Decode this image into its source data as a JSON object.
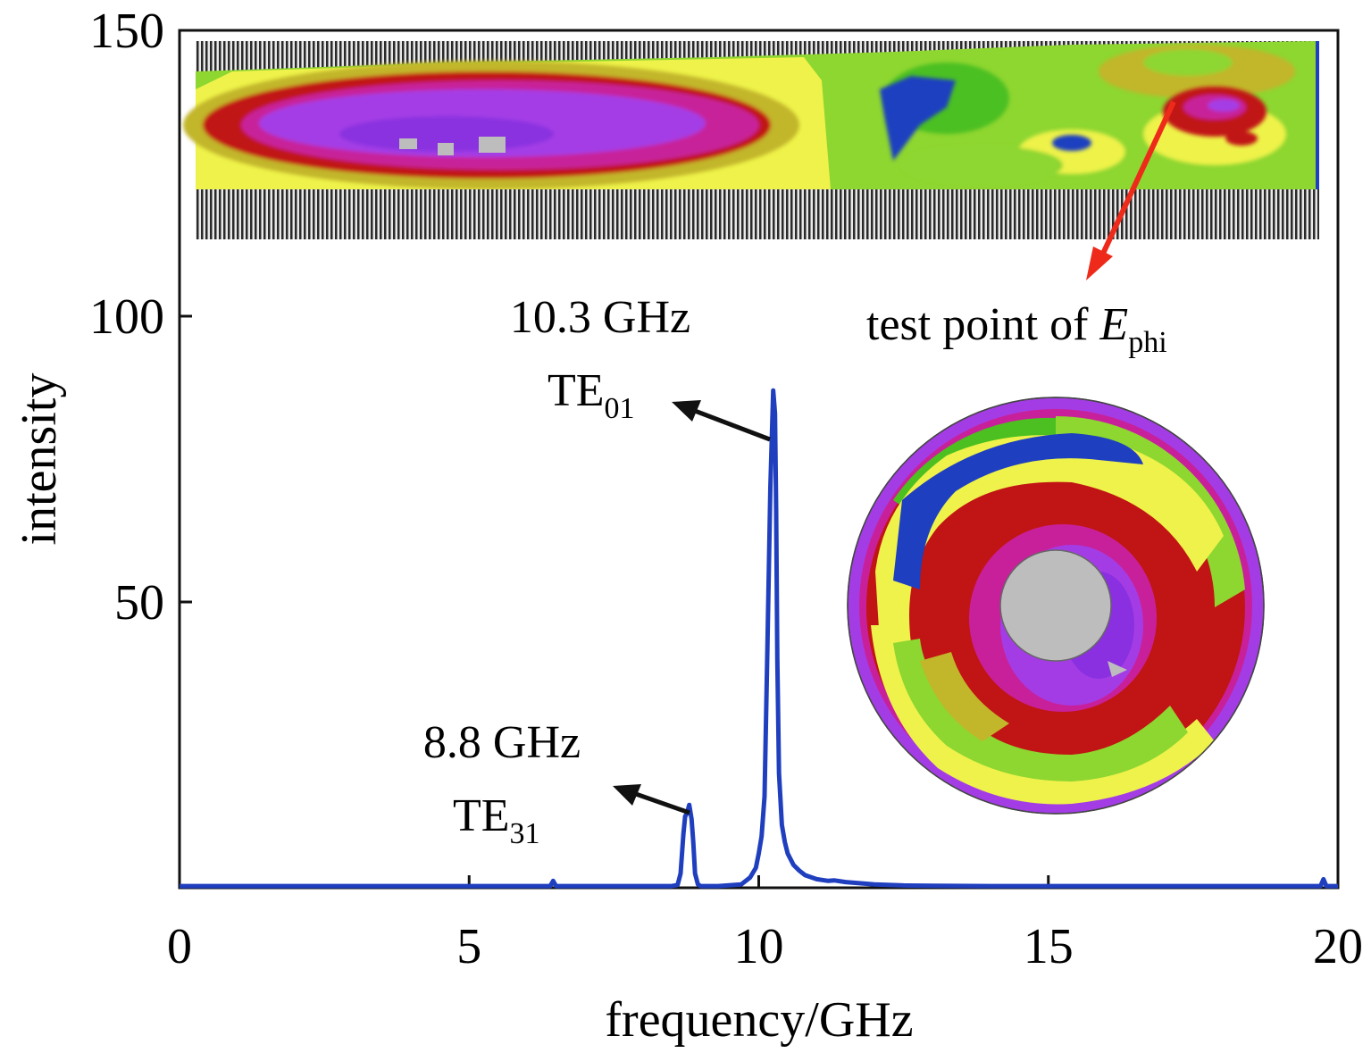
{
  "chart_data": {
    "type": "line",
    "xlabel": "frequency/GHz",
    "ylabel": "intensity",
    "xlim": [
      0,
      20
    ],
    "ylim": [
      0,
      150
    ],
    "x_ticks": [
      "0",
      "5",
      "10",
      "15",
      "20"
    ],
    "y_ticks": [
      "50",
      "100",
      "150"
    ],
    "grid": false,
    "series": [
      {
        "color": "#1f3fbf",
        "x": [
          0,
          2,
          4,
          6,
          6.4,
          6.45,
          6.5,
          7.5,
          8.5,
          8.6,
          8.65,
          8.7,
          8.73,
          8.76,
          8.8,
          8.84,
          8.87,
          8.9,
          8.95,
          9.0,
          9.3,
          9.7,
          9.85,
          9.95,
          10.0,
          10.05,
          10.1,
          10.15,
          10.2,
          10.25,
          10.28,
          10.3,
          10.32,
          10.35,
          10.4,
          10.45,
          10.5,
          10.6,
          10.7,
          10.8,
          11.0,
          11.2,
          11.3,
          11.5,
          12.0,
          12.5,
          13.0,
          14.0,
          15.0,
          16.0,
          17.0,
          18.0,
          19.0,
          19.7,
          19.75,
          19.8,
          20.0
        ],
        "y": [
          0.3,
          0.3,
          0.3,
          0.3,
          0.3,
          1.2,
          0.3,
          0.3,
          0.3,
          0.5,
          2.5,
          9.5,
          12.5,
          13,
          14.5,
          12,
          8,
          2.5,
          0.6,
          0.3,
          0.3,
          0.6,
          1.8,
          3.5,
          6,
          9,
          16,
          42,
          70,
          87,
          83,
          66,
          40,
          20,
          11,
          8,
          6,
          4,
          3,
          2.2,
          1.5,
          1.2,
          1.3,
          1.0,
          0.6,
          0.4,
          0.35,
          0.3,
          0.3,
          0.3,
          0.3,
          0.3,
          0.3,
          0.3,
          1.5,
          0.3,
          0.3
        ]
      }
    ],
    "annotations": [
      {
        "freq": "10.3 GHz",
        "mode": "TE",
        "mode_sub": "01",
        "points_to": [
          10.3,
          80
        ]
      },
      {
        "freq": "8.8 GHz",
        "mode": "TE",
        "mode_sub": "31",
        "points_to": [
          8.8,
          13.5
        ]
      }
    ]
  },
  "inset_label": {
    "prefix": "test point of ",
    "symbol": "E",
    "symbol_sub": "phi"
  },
  "colors": {
    "line": "#1f3fbf",
    "arrow": "#111111",
    "red_arrow": "#ee2a1a",
    "field_levels": [
      "#1e3fc0",
      "#4cc020",
      "#8ed630",
      "#eef24a",
      "#c2b62a",
      "#c11414",
      "#c8209a",
      "#a43ce6",
      "#bdbdbd"
    ]
  }
}
